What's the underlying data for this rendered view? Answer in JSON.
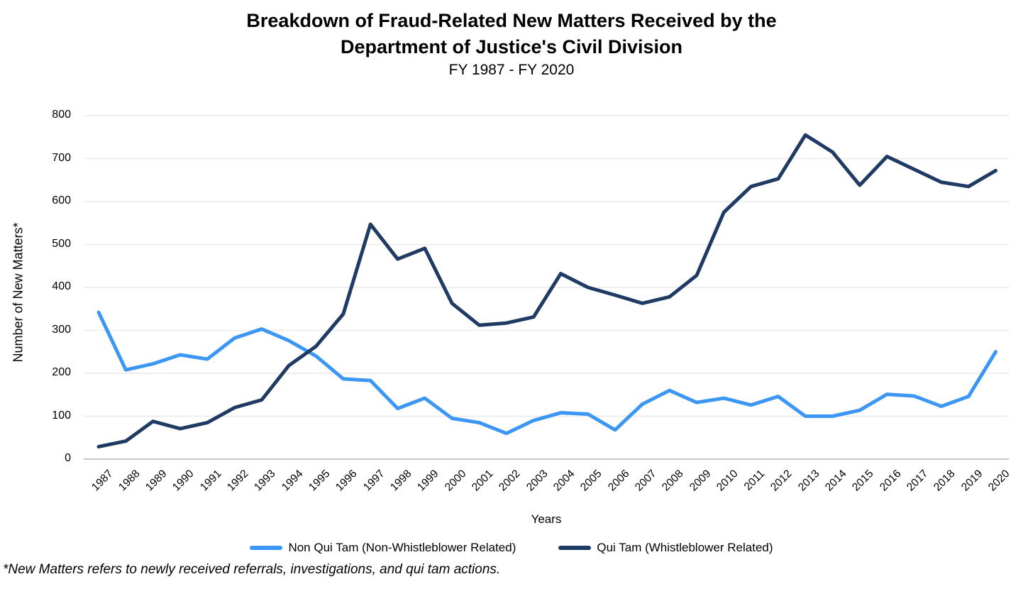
{
  "header": {
    "title_line1": "Breakdown of Fraud-Related New Matters Received by the",
    "title_line2": "Department of Justice's Civil Division",
    "subtitle": "FY 1987 - FY 2020"
  },
  "chart_data": {
    "type": "line",
    "title": "Breakdown of Fraud-Related New Matters Received by the Department of Justice's Civil Division",
    "subtitle": "FY 1987 - FY 2020",
    "xlabel": "Years",
    "ylabel": "Number of New Matters*",
    "ylim": [
      0,
      800
    ],
    "yticks": [
      0,
      100,
      200,
      300,
      400,
      500,
      600,
      700,
      800
    ],
    "grid": "horizontal",
    "legend_position": "bottom",
    "x": [
      "1987",
      "1988",
      "1989",
      "1990",
      "1991",
      "1992",
      "1993",
      "1994",
      "1995",
      "1996",
      "1997",
      "1998",
      "1999",
      "2000",
      "2001",
      "2002",
      "2003",
      "2004",
      "2005",
      "2006",
      "2007",
      "2008",
      "2009",
      "2010",
      "2011",
      "2012",
      "2013",
      "2014",
      "2015",
      "2016",
      "2017",
      "2018",
      "2019",
      "2020"
    ],
    "series": [
      {
        "name": "Non Qui Tam (Non-Whistleblower Related)",
        "color": "#3C96F4",
        "values": [
          342,
          208,
          222,
          243,
          233,
          282,
          303,
          276,
          240,
          187,
          183,
          118,
          142,
          95,
          85,
          60,
          90,
          108,
          105,
          68,
          128,
          160,
          132,
          142,
          126,
          146,
          100,
          100,
          114,
          151,
          147,
          123,
          146,
          250
        ]
      },
      {
        "name": "Qui Tam (Whistleblower Related)",
        "color": "#1F3A63",
        "values": [
          29,
          42,
          88,
          71,
          85,
          120,
          138,
          218,
          263,
          338,
          547,
          466,
          491,
          363,
          312,
          317,
          331,
          432,
          400,
          382,
          363,
          378,
          428,
          575,
          635,
          653,
          755,
          715,
          638,
          705,
          675,
          645,
          635,
          672
        ]
      }
    ]
  },
  "footnote": {
    "text": "*New Matters refers to newly received referrals, investigations, and qui tam actions."
  }
}
